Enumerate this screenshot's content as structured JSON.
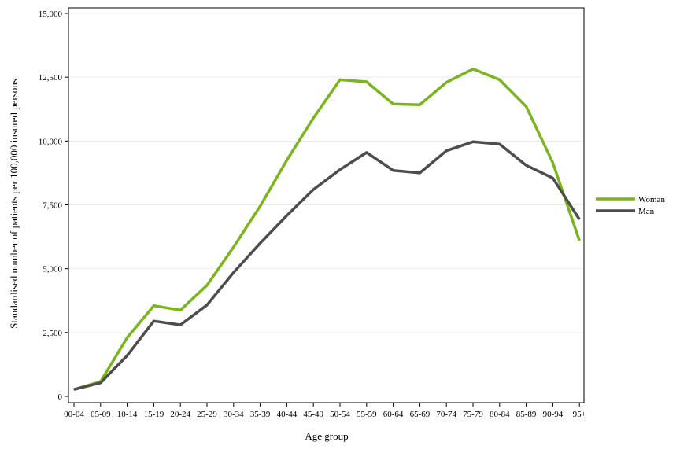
{
  "chart_data": {
    "type": "line",
    "title": "",
    "xlabel": "Age group",
    "ylabel": "Standardised number of patients per 100,000 insured persons",
    "categories": [
      "00-04",
      "05-09",
      "10-14",
      "15-19",
      "20-24",
      "25-29",
      "30-34",
      "35-39",
      "40-44",
      "45-49",
      "50-54",
      "55-59",
      "60-64",
      "65-69",
      "70-74",
      "75-79",
      "80-84",
      "85-89",
      "90-94",
      "95+"
    ],
    "ylim": [
      0,
      15000
    ],
    "yticks": [
      0,
      2500,
      5000,
      7500,
      10000,
      12500,
      15000
    ],
    "ytick_labels": [
      "0",
      "2,500",
      "5,000",
      "7,500",
      "10,000",
      "12,500",
      "15,000"
    ],
    "grid": true,
    "legend_position": "right",
    "series": [
      {
        "name": "Woman",
        "color": "#7ab51d",
        "values": [
          270,
          580,
          2300,
          3550,
          3380,
          4350,
          5850,
          7450,
          9250,
          10900,
          12400,
          12320,
          11450,
          11420,
          12300,
          12820,
          12400,
          11350,
          9150,
          6100
        ]
      },
      {
        "name": "Man",
        "color": "#4d4d4d",
        "values": [
          270,
          530,
          1600,
          2950,
          2800,
          3580,
          4850,
          6000,
          7080,
          8100,
          8880,
          9550,
          8850,
          8750,
          9620,
          9970,
          9880,
          9050,
          8550,
          6930
        ]
      }
    ]
  }
}
